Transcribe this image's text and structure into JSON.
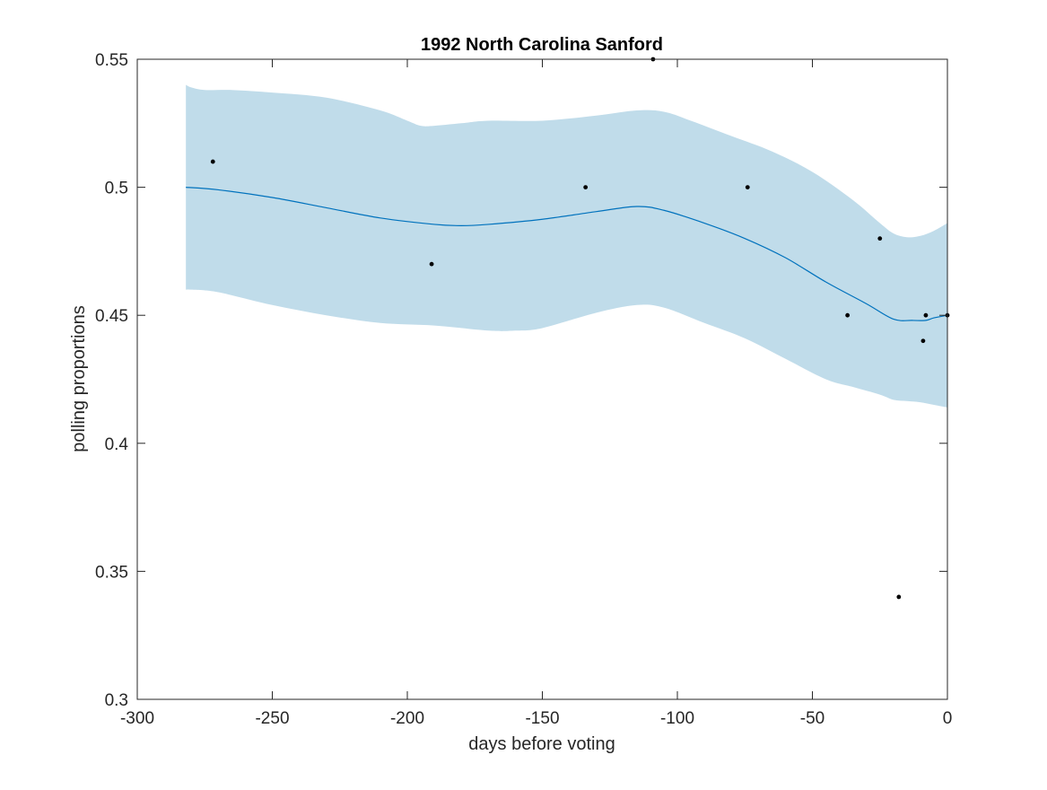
{
  "chart_data": {
    "type": "line",
    "title": "1992 North Carolina Sanford",
    "xlabel": "days before voting",
    "ylabel": "polling proportions",
    "xlim": [
      -300,
      0
    ],
    "ylim": [
      0.3,
      0.55
    ],
    "xticks": [
      -300,
      -250,
      -200,
      -150,
      -100,
      -50,
      0
    ],
    "xtick_labels": [
      "-300",
      "-250",
      "-200",
      "-150",
      "-100",
      "-50",
      "0"
    ],
    "yticks": [
      0.3,
      0.35,
      0.4,
      0.45,
      0.5,
      0.55
    ],
    "ytick_labels": [
      "0.3",
      "0.35",
      "0.4",
      "0.45",
      "0.5",
      "0.55"
    ],
    "grid": false,
    "colors": {
      "band": "#c0dcea",
      "line": "#0072bd",
      "points": "#000000",
      "axes": "#262626"
    },
    "trend": {
      "x": [
        -282,
        -270,
        -250,
        -230,
        -210,
        -190,
        -180,
        -170,
        -150,
        -130,
        -115,
        -105,
        -90,
        -75,
        -60,
        -45,
        -30,
        -20,
        -13,
        -8,
        -5,
        0
      ],
      "y": [
        0.5,
        0.499,
        0.496,
        0.492,
        0.488,
        0.4855,
        0.485,
        0.4855,
        0.4875,
        0.4905,
        0.4925,
        0.491,
        0.486,
        0.48,
        0.4725,
        0.463,
        0.4545,
        0.4485,
        0.448,
        0.448,
        0.449,
        0.45
      ]
    },
    "band_upper": {
      "x": [
        -282,
        -280,
        -275,
        -265,
        -250,
        -230,
        -210,
        -200,
        -195,
        -190,
        -180,
        -170,
        -150,
        -130,
        -115,
        -105,
        -95,
        -80,
        -65,
        -50,
        -35,
        -25,
        -20,
        -15,
        -10,
        -5,
        0
      ],
      "y": [
        0.54,
        0.539,
        0.538,
        0.538,
        0.537,
        0.535,
        0.53,
        0.526,
        0.524,
        0.524,
        0.525,
        0.526,
        0.526,
        0.528,
        0.53,
        0.5295,
        0.526,
        0.52,
        0.514,
        0.506,
        0.495,
        0.486,
        0.482,
        0.4805,
        0.481,
        0.483,
        0.486
      ]
    },
    "band_lower": {
      "x": [
        -282,
        -280,
        -270,
        -250,
        -230,
        -210,
        -190,
        -170,
        -160,
        -150,
        -130,
        -115,
        -105,
        -90,
        -75,
        -60,
        -45,
        -35,
        -25,
        -20,
        -15,
        -10,
        -5,
        0
      ],
      "y": [
        0.46,
        0.46,
        0.459,
        0.454,
        0.45,
        0.447,
        0.446,
        0.444,
        0.444,
        0.445,
        0.451,
        0.454,
        0.453,
        0.447,
        0.441,
        0.433,
        0.425,
        0.422,
        0.419,
        0.417,
        0.4165,
        0.416,
        0.415,
        0.414
      ]
    },
    "polls": {
      "x": [
        -272,
        -191,
        -134,
        -109,
        -74,
        -37,
        -25,
        -18,
        -9,
        -8,
        0
      ],
      "y": [
        0.51,
        0.47,
        0.5,
        0.55,
        0.5,
        0.45,
        0.48,
        0.34,
        0.44,
        0.45,
        0.45
      ]
    }
  }
}
